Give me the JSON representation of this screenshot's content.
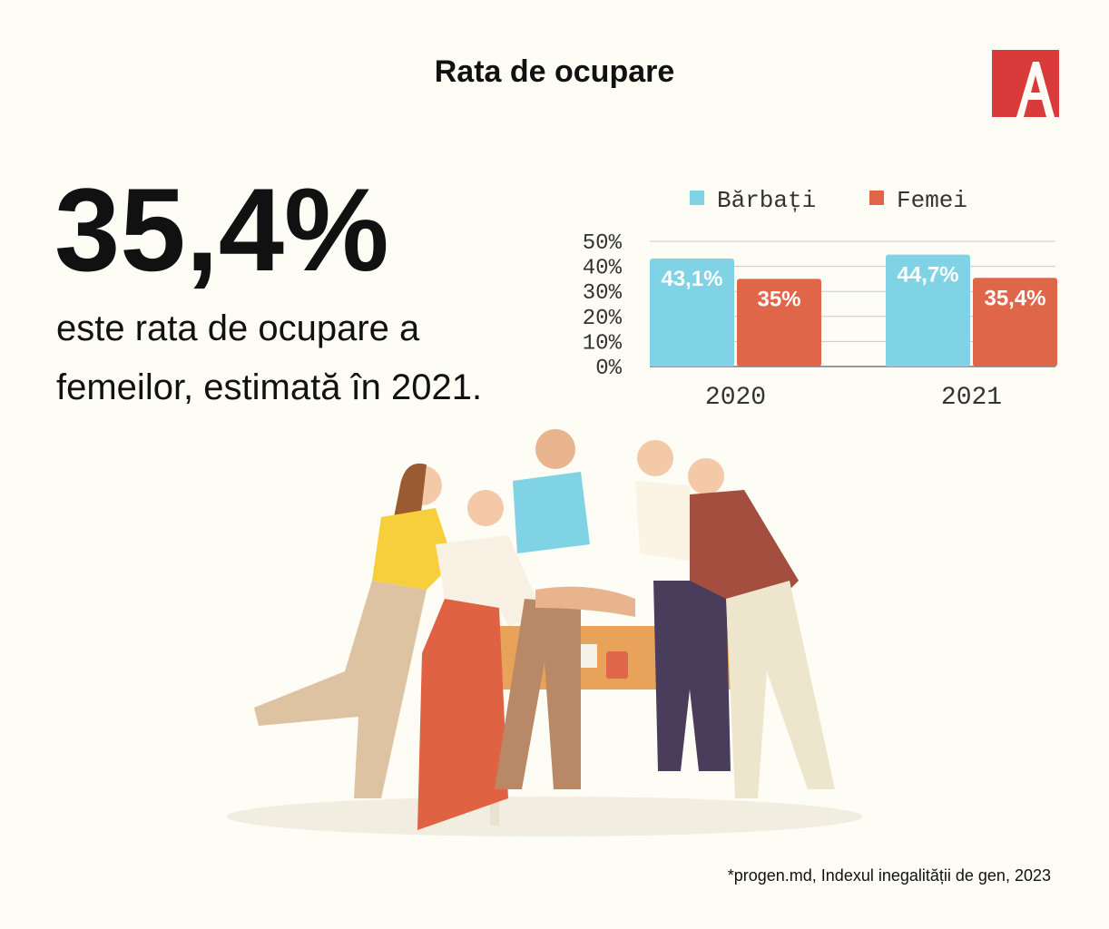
{
  "header": {
    "title": "Rata de ocupare"
  },
  "highlight": {
    "value": "35,4%",
    "lines": [
      "este rata de ocupare a",
      "femeilor, estimată în 2021."
    ]
  },
  "chart_data": {
    "type": "bar",
    "categories": [
      "2020",
      "2021"
    ],
    "series": [
      {
        "name": "Bărbați",
        "color": "#7fd3e4",
        "values": [
          43.1,
          44.7
        ],
        "value_labels": [
          "43,1%",
          "44,7%"
        ]
      },
      {
        "name": "Femei",
        "color": "#e0664a",
        "values": [
          35,
          35.4
        ],
        "value_labels": [
          "35%",
          "35,4%"
        ]
      }
    ],
    "ylim": [
      0,
      50
    ],
    "yticks": [
      {
        "value": 0,
        "label": "0%"
      },
      {
        "value": 10,
        "label": "10%"
      },
      {
        "value": 20,
        "label": "20%"
      },
      {
        "value": 30,
        "label": "30%"
      },
      {
        "value": 40,
        "label": "40%"
      },
      {
        "value": 50,
        "label": "50%"
      }
    ],
    "grid": true
  },
  "footer": {
    "source": "*progen.md, Indexul inegalității de gen, 2023"
  }
}
